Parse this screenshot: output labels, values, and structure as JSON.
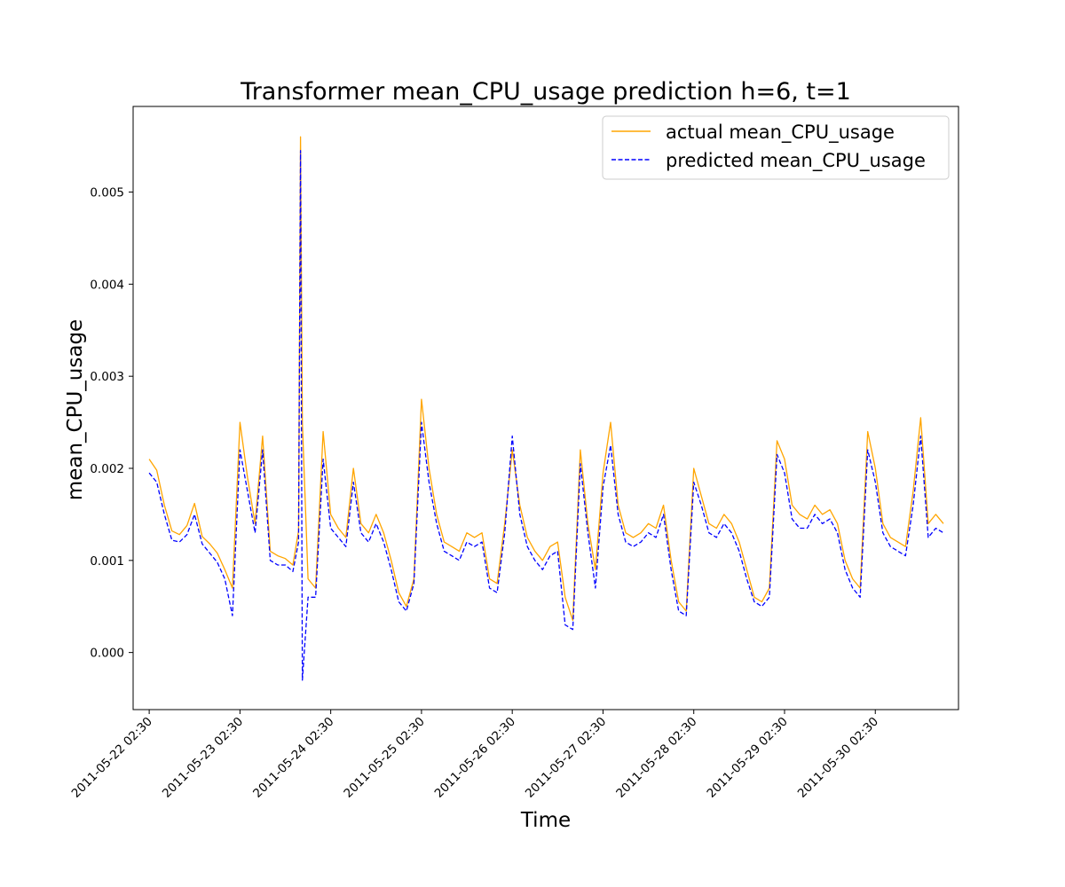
{
  "chart_data": {
    "type": "line",
    "title": "Transformer mean_CPU_usage prediction h=6, t=1",
    "xlabel": "Time",
    "ylabel": "mean_CPU_usage",
    "ylim": [
      -0.00062,
      0.00593
    ],
    "xlim": [
      "2011-05-21 22:15",
      "2011-05-31 00:30"
    ],
    "grid": false,
    "legend_position": "top-right",
    "y_ticks": [
      "0.000",
      "0.001",
      "0.002",
      "0.003",
      "0.004",
      "0.005"
    ],
    "x_ticks": [
      "2011-05-22 02:30",
      "2011-05-23 02:30",
      "2011-05-24 02:30",
      "2011-05-25 02:30",
      "2011-05-26 02:30",
      "2011-05-27 02:30",
      "2011-05-28 02:30",
      "2011-05-29 02:30",
      "2011-05-30 02:30"
    ],
    "colors": {
      "actual": "#ffa500",
      "predicted": "#0000ff"
    },
    "series": [
      {
        "name": "actual mean_CPU_usage",
        "style": "solid",
        "x": [
          "2011-05-22 02:30",
          "2011-05-22 04:30",
          "2011-05-22 06:30",
          "2011-05-22 08:30",
          "2011-05-22 10:30",
          "2011-05-22 12:30",
          "2011-05-22 14:30",
          "2011-05-22 16:30",
          "2011-05-22 18:30",
          "2011-05-22 20:30",
          "2011-05-22 22:30",
          "2011-05-23 00:30",
          "2011-05-23 02:30",
          "2011-05-23 04:30",
          "2011-05-23 06:30",
          "2011-05-23 08:30",
          "2011-05-23 10:30",
          "2011-05-23 12:30",
          "2011-05-23 14:30",
          "2011-05-23 16:30",
          "2011-05-23 18:00",
          "2011-05-23 18:30",
          "2011-05-23 19:00",
          "2011-05-23 20:30",
          "2011-05-23 22:30",
          "2011-05-24 00:30",
          "2011-05-24 02:30",
          "2011-05-24 04:30",
          "2011-05-24 06:30",
          "2011-05-24 08:30",
          "2011-05-24 10:30",
          "2011-05-24 12:30",
          "2011-05-24 14:30",
          "2011-05-24 16:30",
          "2011-05-24 18:30",
          "2011-05-24 20:30",
          "2011-05-24 22:30",
          "2011-05-25 00:30",
          "2011-05-25 02:30",
          "2011-05-25 04:30",
          "2011-05-25 06:30",
          "2011-05-25 08:30",
          "2011-05-25 10:30",
          "2011-05-25 12:30",
          "2011-05-25 14:30",
          "2011-05-25 16:30",
          "2011-05-25 18:30",
          "2011-05-25 20:30",
          "2011-05-25 22:30",
          "2011-05-26 00:30",
          "2011-05-26 02:30",
          "2011-05-26 04:30",
          "2011-05-26 06:30",
          "2011-05-26 08:30",
          "2011-05-26 10:30",
          "2011-05-26 12:30",
          "2011-05-26 14:30",
          "2011-05-26 16:30",
          "2011-05-26 18:30",
          "2011-05-26 20:30",
          "2011-05-26 22:30",
          "2011-05-27 00:30",
          "2011-05-27 02:30",
          "2011-05-27 04:30",
          "2011-05-27 06:30",
          "2011-05-27 08:30",
          "2011-05-27 10:30",
          "2011-05-27 12:30",
          "2011-05-27 14:30",
          "2011-05-27 16:30",
          "2011-05-27 18:30",
          "2011-05-27 20:30",
          "2011-05-27 22:30",
          "2011-05-28 00:30",
          "2011-05-28 02:30",
          "2011-05-28 04:30",
          "2011-05-28 06:30",
          "2011-05-28 08:30",
          "2011-05-28 10:30",
          "2011-05-28 12:30",
          "2011-05-28 14:30",
          "2011-05-28 16:30",
          "2011-05-28 18:30",
          "2011-05-28 20:30",
          "2011-05-28 22:30",
          "2011-05-29 00:30",
          "2011-05-29 02:30",
          "2011-05-29 04:30",
          "2011-05-29 06:30",
          "2011-05-29 08:30",
          "2011-05-29 10:30",
          "2011-05-29 12:30",
          "2011-05-29 14:30",
          "2011-05-29 16:30",
          "2011-05-29 18:30",
          "2011-05-29 20:30",
          "2011-05-29 22:30",
          "2011-05-30 00:30",
          "2011-05-30 02:30",
          "2011-05-30 04:30",
          "2011-05-30 06:30",
          "2011-05-30 08:30",
          "2011-05-30 10:30",
          "2011-05-30 12:30",
          "2011-05-30 14:30",
          "2011-05-30 16:30",
          "2011-05-30 18:30",
          "2011-05-30 20:30"
        ],
        "values": [
          0.0021,
          0.00198,
          0.0016,
          0.00132,
          0.00128,
          0.00138,
          0.00162,
          0.00126,
          0.00118,
          0.00108,
          0.0009,
          0.0007,
          0.0025,
          0.0019,
          0.0014,
          0.00235,
          0.0011,
          0.00105,
          0.00102,
          0.00095,
          0.00132,
          0.0056,
          0.0025,
          0.0008,
          0.0007,
          0.0024,
          0.0015,
          0.00135,
          0.00125,
          0.002,
          0.0014,
          0.0013,
          0.0015,
          0.0013,
          0.001,
          0.00065,
          0.0005,
          0.0008,
          0.00275,
          0.002,
          0.0015,
          0.0012,
          0.00115,
          0.0011,
          0.0013,
          0.00125,
          0.0013,
          0.0008,
          0.00075,
          0.0014,
          0.0022,
          0.0016,
          0.00125,
          0.0011,
          0.001,
          0.00115,
          0.0012,
          0.0006,
          0.00035,
          0.0022,
          0.0014,
          0.0009,
          0.00195,
          0.0025,
          0.0016,
          0.0013,
          0.00125,
          0.0013,
          0.0014,
          0.00135,
          0.0016,
          0.001,
          0.00055,
          0.00045,
          0.002,
          0.0017,
          0.0014,
          0.00135,
          0.0015,
          0.0014,
          0.0012,
          0.0009,
          0.0006,
          0.00055,
          0.0007,
          0.0023,
          0.0021,
          0.0016,
          0.0015,
          0.00145,
          0.0016,
          0.0015,
          0.00155,
          0.0014,
          0.001,
          0.0008,
          0.0007,
          0.0024,
          0.002,
          0.0014,
          0.00125,
          0.0012,
          0.00115,
          0.00175,
          0.00255,
          0.0014,
          0.0015,
          0.0014
        ]
      },
      {
        "name": "predicted mean_CPU_usage",
        "style": "dashed",
        "x": [
          "2011-05-22 02:30",
          "2011-05-22 04:30",
          "2011-05-22 06:30",
          "2011-05-22 08:30",
          "2011-05-22 10:30",
          "2011-05-22 12:30",
          "2011-05-22 14:30",
          "2011-05-22 16:30",
          "2011-05-22 18:30",
          "2011-05-22 20:30",
          "2011-05-22 22:30",
          "2011-05-23 00:30",
          "2011-05-23 02:30",
          "2011-05-23 04:30",
          "2011-05-23 06:30",
          "2011-05-23 08:30",
          "2011-05-23 10:30",
          "2011-05-23 12:30",
          "2011-05-23 14:30",
          "2011-05-23 16:30",
          "2011-05-23 18:00",
          "2011-05-23 18:30",
          "2011-05-23 19:00",
          "2011-05-23 20:30",
          "2011-05-23 22:30",
          "2011-05-24 00:30",
          "2011-05-24 02:30",
          "2011-05-24 04:30",
          "2011-05-24 06:30",
          "2011-05-24 08:30",
          "2011-05-24 10:30",
          "2011-05-24 12:30",
          "2011-05-24 14:30",
          "2011-05-24 16:30",
          "2011-05-24 18:30",
          "2011-05-24 20:30",
          "2011-05-24 22:30",
          "2011-05-25 00:30",
          "2011-05-25 02:30",
          "2011-05-25 04:30",
          "2011-05-25 06:30",
          "2011-05-25 08:30",
          "2011-05-25 10:30",
          "2011-05-25 12:30",
          "2011-05-25 14:30",
          "2011-05-25 16:30",
          "2011-05-25 18:30",
          "2011-05-25 20:30",
          "2011-05-25 22:30",
          "2011-05-26 00:30",
          "2011-05-26 02:30",
          "2011-05-26 04:30",
          "2011-05-26 06:30",
          "2011-05-26 08:30",
          "2011-05-26 10:30",
          "2011-05-26 12:30",
          "2011-05-26 14:30",
          "2011-05-26 16:30",
          "2011-05-26 18:30",
          "2011-05-26 20:30",
          "2011-05-26 22:30",
          "2011-05-27 00:30",
          "2011-05-27 02:30",
          "2011-05-27 04:30",
          "2011-05-27 06:30",
          "2011-05-27 08:30",
          "2011-05-27 10:30",
          "2011-05-27 12:30",
          "2011-05-27 14:30",
          "2011-05-27 16:30",
          "2011-05-27 18:30",
          "2011-05-27 20:30",
          "2011-05-27 22:30",
          "2011-05-28 00:30",
          "2011-05-28 02:30",
          "2011-05-28 04:30",
          "2011-05-28 06:30",
          "2011-05-28 08:30",
          "2011-05-28 10:30",
          "2011-05-28 12:30",
          "2011-05-28 14:30",
          "2011-05-28 16:30",
          "2011-05-28 18:30",
          "2011-05-28 20:30",
          "2011-05-28 22:30",
          "2011-05-29 00:30",
          "2011-05-29 02:30",
          "2011-05-29 04:30",
          "2011-05-29 06:30",
          "2011-05-29 08:30",
          "2011-05-29 10:30",
          "2011-05-29 12:30",
          "2011-05-29 14:30",
          "2011-05-29 16:30",
          "2011-05-29 18:30",
          "2011-05-29 20:30",
          "2011-05-29 22:30",
          "2011-05-30 00:30",
          "2011-05-30 02:30",
          "2011-05-30 04:30",
          "2011-05-30 06:30",
          "2011-05-30 08:30",
          "2011-05-30 10:30",
          "2011-05-30 12:30",
          "2011-05-30 14:30",
          "2011-05-30 16:30",
          "2011-05-30 18:30",
          "2011-05-30 20:30"
        ],
        "values": [
          0.00195,
          0.00185,
          0.0015,
          0.00122,
          0.0012,
          0.00128,
          0.0015,
          0.00118,
          0.00108,
          0.00098,
          0.0008,
          0.0004,
          0.0022,
          0.00175,
          0.0013,
          0.0022,
          0.001,
          0.00095,
          0.00095,
          0.00088,
          0.0012,
          0.00545,
          -0.0003,
          0.0006,
          0.0006,
          0.0021,
          0.00135,
          0.00125,
          0.00115,
          0.00185,
          0.0013,
          0.0012,
          0.0014,
          0.0012,
          0.0009,
          0.00055,
          0.00045,
          0.00075,
          0.0025,
          0.00185,
          0.0014,
          0.0011,
          0.00105,
          0.001,
          0.0012,
          0.00115,
          0.0012,
          0.0007,
          0.00065,
          0.0013,
          0.00235,
          0.0015,
          0.00115,
          0.001,
          0.0009,
          0.00105,
          0.0011,
          0.0003,
          0.00025,
          0.00205,
          0.0013,
          0.0007,
          0.0018,
          0.00225,
          0.0015,
          0.0012,
          0.00115,
          0.0012,
          0.0013,
          0.00125,
          0.0015,
          0.0009,
          0.00045,
          0.0004,
          0.00185,
          0.0016,
          0.0013,
          0.00125,
          0.0014,
          0.0013,
          0.0011,
          0.0008,
          0.00055,
          0.0005,
          0.0006,
          0.00215,
          0.00195,
          0.00145,
          0.00135,
          0.00135,
          0.0015,
          0.0014,
          0.00145,
          0.0013,
          0.0009,
          0.0007,
          0.0006,
          0.0022,
          0.00185,
          0.0013,
          0.00115,
          0.0011,
          0.00105,
          0.0016,
          0.00235,
          0.00125,
          0.00135,
          0.0013
        ]
      }
    ]
  }
}
